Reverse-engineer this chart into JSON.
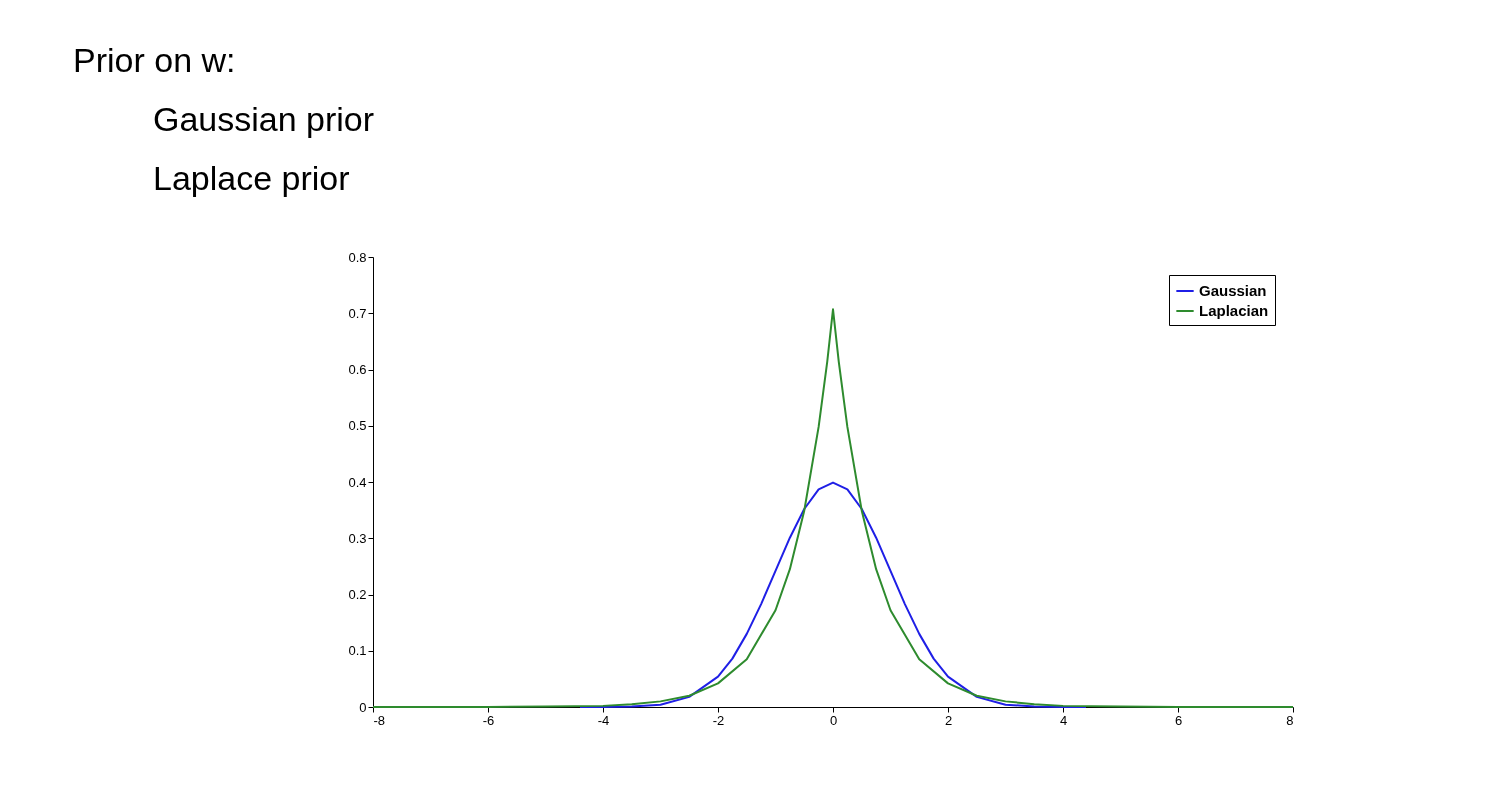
{
  "chart_data": {
    "type": "line",
    "title": "Prior on w:",
    "annotations": [
      "Gaussian prior",
      "Laplace prior"
    ],
    "series": [
      {
        "name": "Gaussian",
        "color": "#1f1fe6",
        "x": [
          -4.4,
          -4,
          -3.5,
          -3,
          -2.5,
          -2,
          -1.75,
          -1.5,
          -1.25,
          -1,
          -0.75,
          -0.5,
          -0.25,
          0,
          0.25,
          0.5,
          0.75,
          1,
          1.25,
          1.5,
          1.75,
          2,
          2.5,
          3,
          3.5,
          4,
          4.4
        ],
        "values": [
          0.0,
          0.0,
          0.001,
          0.004,
          0.018,
          0.054,
          0.086,
          0.13,
          0.183,
          0.242,
          0.301,
          0.352,
          0.387,
          0.399,
          0.387,
          0.352,
          0.301,
          0.242,
          0.183,
          0.13,
          0.086,
          0.054,
          0.018,
          0.004,
          0.001,
          0.0,
          0.0
        ]
      },
      {
        "name": "Laplacian",
        "color": "#2e8b2e",
        "x": [
          -8,
          -6,
          -5,
          -4,
          -3.5,
          -3,
          -2.5,
          -2,
          -1.5,
          -1,
          -0.75,
          -0.5,
          -0.25,
          -0.1,
          0,
          0.1,
          0.25,
          0.5,
          0.75,
          1,
          1.5,
          2,
          2.5,
          3,
          3.5,
          4,
          5,
          6,
          8
        ],
        "values": [
          0.0,
          0.0,
          0.001,
          0.002,
          0.005,
          0.01,
          0.02,
          0.042,
          0.085,
          0.172,
          0.245,
          0.349,
          0.498,
          0.614,
          0.707,
          0.614,
          0.498,
          0.349,
          0.245,
          0.172,
          0.085,
          0.042,
          0.02,
          0.01,
          0.005,
          0.002,
          0.001,
          0.0,
          0.0
        ]
      }
    ],
    "xlim": [
      -8,
      8
    ],
    "xticks": [
      -8,
      -6,
      -4,
      -2,
      0,
      2,
      4,
      6,
      8
    ],
    "ylim": [
      0,
      0.8
    ],
    "yticks": [
      0,
      0.1,
      0.2,
      0.3,
      0.4,
      0.5,
      0.6,
      0.7,
      0.8
    ],
    "legend": "top right",
    "grid": false,
    "marker": "none",
    "line_style": "solid"
  }
}
